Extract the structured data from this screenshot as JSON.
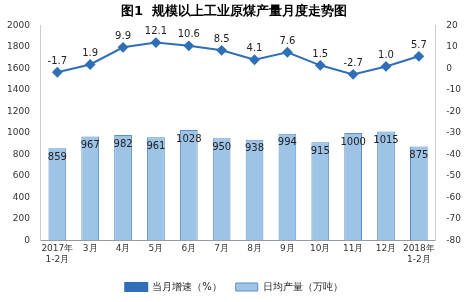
{
  "chart_data": {
    "type": "bar",
    "title": "图1  规模以上工业原煤产量月度走势图",
    "categories": [
      "2017年1-2月",
      "3月",
      "4月",
      "5月",
      "6月",
      "7月",
      "8月",
      "9月",
      "10月",
      "11月",
      "12月",
      "2018年1-2月"
    ],
    "series": [
      {
        "name": "日均产量（万吨）",
        "type": "bar",
        "color": "#9dc3e6",
        "values": [
          859,
          967,
          982,
          961,
          1028,
          950,
          938,
          994,
          915,
          1000,
          1015,
          875
        ]
      },
      {
        "name": "当月增速（%）",
        "type": "line",
        "axis": "y2",
        "color": "#2e6fb5",
        "marker": "diamond",
        "line_style": "solid",
        "values": [
          -1.7,
          1.9,
          9.9,
          12.1,
          10.6,
          8.5,
          4.1,
          7.6,
          1.5,
          -2.7,
          1.0,
          5.7
        ],
        "value_labels": [
          "-1.7",
          "1.9",
          "9.9",
          "12.1",
          "10.6",
          "8.5",
          "4.1",
          "7.6",
          "1.5",
          "-2.7",
          "1.0",
          "5.7"
        ]
      }
    ],
    "ylim": [
      0,
      2000
    ],
    "yticks": [
      0,
      200,
      400,
      600,
      800,
      1000,
      1200,
      1400,
      1600,
      1800,
      2000
    ],
    "y2lim": [
      -80,
      20
    ],
    "y2ticks": [
      -80,
      -70,
      -60,
      -50,
      -40,
      -30,
      -20,
      -10,
      0,
      10,
      20
    ],
    "grid": false,
    "legend": "bottom",
    "data_labels": true
  }
}
